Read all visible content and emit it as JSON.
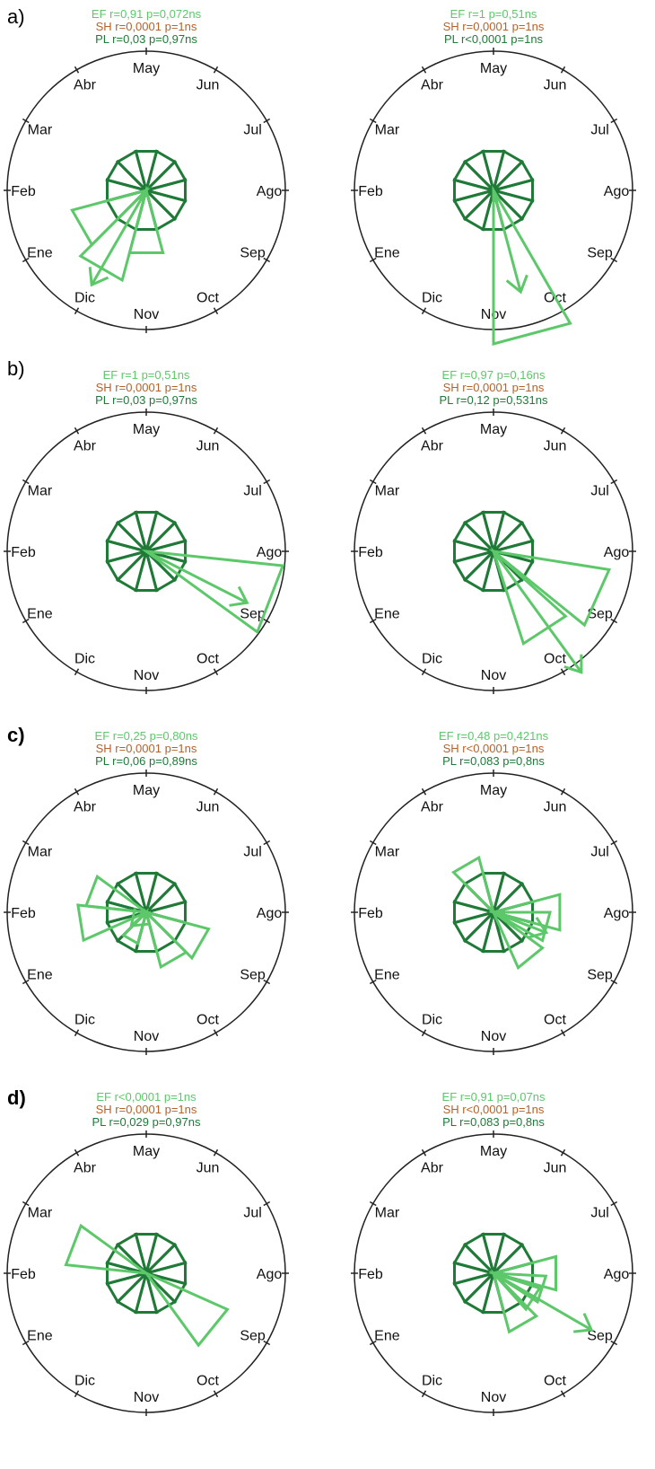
{
  "colors": {
    "EF": "#5cc86a",
    "SH": "#b5622a",
    "PL": "#1f7a37",
    "circle": "#222222"
  },
  "month_labels": [
    "May",
    "Jun",
    "Jul",
    "Ago",
    "Sep",
    "Oct",
    "Nov",
    "Dic",
    "Ene",
    "Feb",
    "Mar",
    "Abr"
  ],
  "panels": [
    {
      "label": "a)"
    },
    {
      "label": "b)"
    },
    {
      "label": "c)"
    },
    {
      "label": "d)"
    }
  ],
  "chart_data": [
    {
      "type": "rose",
      "panel": "a)",
      "stats": {
        "EF": "EF r=0,91 p=0,072ns",
        "SH": "SH r=0,0001 p=1ns",
        "PL": "PL r=0,03 p=0,97ns"
      },
      "rose_PL": 1,
      "rose_EF": [
        [
          6,
          1.6
        ],
        [
          7,
          2.3
        ],
        [
          8,
          1.9
        ]
      ],
      "mean_vector": [
        7,
        2.7
      ]
    },
    {
      "type": "rose",
      "panel": "a)",
      "stats": {
        "EF": "EF r=1 p=0,51ns",
        "SH": "SH r=0,0001 p=1ns",
        "PL": "PL r<0,0001 p=1ns"
      },
      "rose_PL": 1,
      "rose_EF": [
        [
          5.5,
          3.8
        ]
      ],
      "mean_vector": [
        5.5,
        2.6
      ]
    },
    {
      "type": "rose",
      "panel": "b)",
      "stats": {
        "EF": "EF r=1 p=0,51ns",
        "SH": "SH r=0,0001 p=1ns",
        "PL": "PL r=0,03 p=0,97ns"
      },
      "rose_PL": 1,
      "rose_EF": [
        [
          3.7,
          3.4
        ]
      ],
      "mean_vector": [
        3.9,
        2.8
      ]
    },
    {
      "type": "rose",
      "panel": "b)",
      "stats": {
        "EF": "EF r=0,97 p=0,16ns",
        "SH": "SH r=0,0001 p=1ns",
        "PL": "PL r=0,12 p=0,531ns"
      },
      "rose_PL": 1,
      "rose_EF": [
        [
          3.8,
          2.9
        ],
        [
          4.9,
          2.4
        ]
      ],
      "mean_vector": [
        4.8,
        3.7
      ]
    },
    {
      "type": "rose",
      "panel": "c)",
      "stats": {
        "EF": "EF r=0,25 p=0,80ns",
        "SH": "SH r=0,0001 p=1ns",
        "PL": "PL r=0,06 p=0,89ns"
      },
      "rose_PL": 1,
      "rose_EF": [
        [
          4,
          1.6
        ],
        [
          5,
          1.4
        ],
        [
          8.7,
          1.7
        ],
        [
          9.7,
          1.5
        ],
        [
          7,
          0.8
        ]
      ],
      "mean_vector": [
        7.6,
        0.5
      ]
    },
    {
      "type": "rose",
      "panel": "c)",
      "stats": {
        "EF": "EF r=0,48 p=0,421ns",
        "SH": "SH r<0,0001 p=1ns",
        "PL": "PL r=0,083 p=0,8ns"
      },
      "rose_PL": 1,
      "rose_EF": [
        [
          3,
          1.7
        ],
        [
          11,
          1.4
        ],
        [
          3.5,
          1.4
        ],
        [
          4.7,
          1.5
        ]
      ],
      "mean_vector": [
        3.7,
        1.4
      ]
    },
    {
      "type": "rose",
      "panel": "d)",
      "stats": {
        "EF": "EF r<0,0001 p=1ns",
        "SH": "SH r=0,0001 p=1ns",
        "PL": "PL r=0,029 p=0,97ns"
      },
      "rose_PL": 1,
      "rose_EF": [
        [
          9.7,
          2.0
        ],
        [
          4.3,
          2.2
        ]
      ],
      "mean_vector": null
    },
    {
      "type": "rose",
      "panel": "d)",
      "stats": {
        "EF": "EF r=0,91 p=0,07ns",
        "SH": "SH r<0,0001 p=1ns",
        "PL": "PL r=0,083 p=0,8ns"
      },
      "rose_PL": 1,
      "rose_EF": [
        [
          3,
          1.6
        ],
        [
          3.6,
          1.3
        ],
        [
          4.1,
          1.2
        ],
        [
          5,
          1.5
        ]
      ],
      "mean_vector": [
        4,
        2.8
      ]
    }
  ]
}
